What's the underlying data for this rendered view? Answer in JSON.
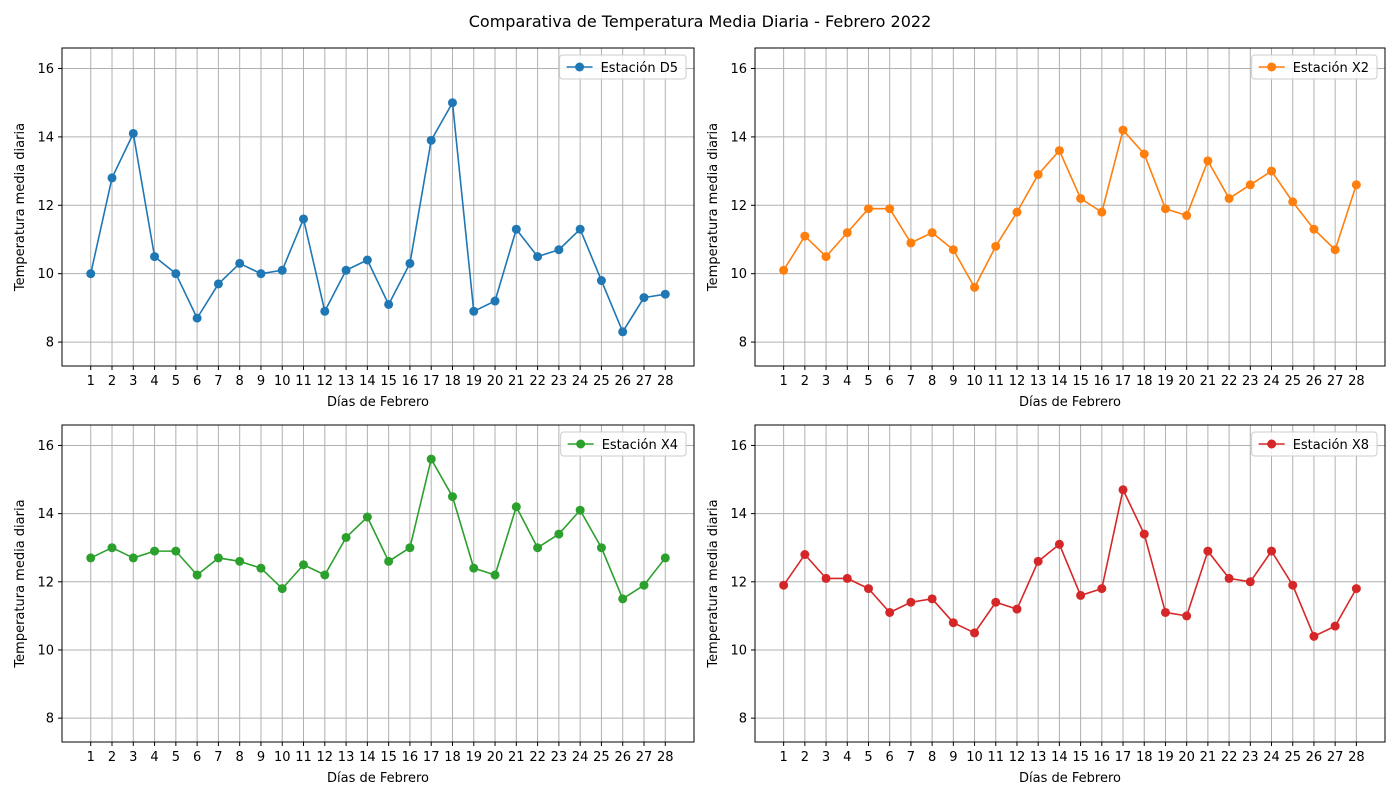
{
  "figure": {
    "title": "Comparativa de Temperatura Media Diaria - Febrero 2022"
  },
  "chart_data": [
    {
      "type": "line",
      "title": "",
      "xlabel": "Días de Febrero",
      "ylabel": "Temperatura media diaria",
      "x": [
        1,
        2,
        3,
        4,
        5,
        6,
        7,
        8,
        9,
        10,
        11,
        12,
        13,
        14,
        15,
        16,
        17,
        18,
        19,
        20,
        21,
        22,
        23,
        24,
        25,
        26,
        27,
        28
      ],
      "ylim": [
        7.3,
        16.6
      ],
      "yticks": [
        8,
        10,
        12,
        14,
        16
      ],
      "grid": true,
      "legend_position": "top-right",
      "series": [
        {
          "name": "Estación D5",
          "color": "#1f77b4",
          "marker": "circle",
          "values": [
            10.0,
            12.8,
            14.1,
            10.5,
            10.0,
            8.7,
            9.7,
            10.3,
            10.0,
            10.1,
            11.6,
            8.9,
            10.1,
            10.4,
            9.1,
            10.3,
            13.9,
            15.0,
            8.9,
            9.2,
            11.3,
            10.5,
            10.7,
            11.3,
            9.8,
            8.3,
            9.3,
            9.4
          ]
        }
      ]
    },
    {
      "type": "line",
      "title": "",
      "xlabel": "Días de Febrero",
      "ylabel": "Temperatura media diaria",
      "x": [
        1,
        2,
        3,
        4,
        5,
        6,
        7,
        8,
        9,
        10,
        11,
        12,
        13,
        14,
        15,
        16,
        17,
        18,
        19,
        20,
        21,
        22,
        23,
        24,
        25,
        26,
        27,
        28
      ],
      "ylim": [
        7.3,
        16.6
      ],
      "yticks": [
        8,
        10,
        12,
        14,
        16
      ],
      "grid": true,
      "legend_position": "top-right",
      "series": [
        {
          "name": "Estación X2",
          "color": "#ff7f0e",
          "marker": "circle",
          "values": [
            10.1,
            11.1,
            10.5,
            11.2,
            11.9,
            11.9,
            10.9,
            11.2,
            10.7,
            9.6,
            10.8,
            11.8,
            12.9,
            13.6,
            12.2,
            11.8,
            14.2,
            13.5,
            11.9,
            11.7,
            13.3,
            12.2,
            12.6,
            13.0,
            12.1,
            11.3,
            10.7,
            12.6
          ]
        }
      ]
    },
    {
      "type": "line",
      "title": "",
      "xlabel": "Días de Febrero",
      "ylabel": "Temperatura media diaria",
      "x": [
        1,
        2,
        3,
        4,
        5,
        6,
        7,
        8,
        9,
        10,
        11,
        12,
        13,
        14,
        15,
        16,
        17,
        18,
        19,
        20,
        21,
        22,
        23,
        24,
        25,
        26,
        27,
        28
      ],
      "ylim": [
        7.3,
        16.6
      ],
      "yticks": [
        8,
        10,
        12,
        14,
        16
      ],
      "grid": true,
      "legend_position": "top-right",
      "series": [
        {
          "name": "Estación X4",
          "color": "#2ca02c",
          "marker": "circle",
          "values": [
            12.7,
            13.0,
            12.7,
            12.9,
            12.9,
            12.2,
            12.7,
            12.6,
            12.4,
            11.8,
            12.5,
            12.2,
            13.3,
            13.9,
            12.6,
            13.0,
            15.6,
            14.5,
            12.4,
            12.2,
            14.2,
            13.0,
            13.4,
            14.1,
            13.0,
            11.5,
            11.9,
            12.7
          ]
        }
      ]
    },
    {
      "type": "line",
      "title": "",
      "xlabel": "Días de Febrero",
      "ylabel": "Temperatura media diaria",
      "x": [
        1,
        2,
        3,
        4,
        5,
        6,
        7,
        8,
        9,
        10,
        11,
        12,
        13,
        14,
        15,
        16,
        17,
        18,
        19,
        20,
        21,
        22,
        23,
        24,
        25,
        26,
        27,
        28
      ],
      "ylim": [
        7.3,
        16.6
      ],
      "yticks": [
        8,
        10,
        12,
        14,
        16
      ],
      "grid": true,
      "legend_position": "top-right",
      "series": [
        {
          "name": "Estación X8",
          "color": "#d62728",
          "marker": "circle",
          "values": [
            11.9,
            12.8,
            12.1,
            12.1,
            11.8,
            11.1,
            11.4,
            11.5,
            10.8,
            10.5,
            11.4,
            11.2,
            12.6,
            13.1,
            11.6,
            11.8,
            14.7,
            13.4,
            11.1,
            11.0,
            12.9,
            12.1,
            12.0,
            12.9,
            11.9,
            10.4,
            10.7,
            11.8
          ]
        }
      ]
    }
  ]
}
